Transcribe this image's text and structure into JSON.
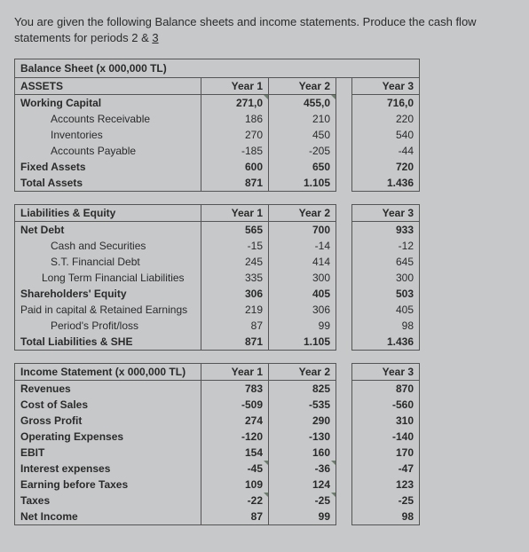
{
  "intro": {
    "part1": "You are given the following Balance sheets and income statements. Produce the cash flow statements for periods 2 & ",
    "part2": "3"
  },
  "balance_sheet": {
    "title": "Balance Sheet (x 000,000 TL)",
    "assets_header": "ASSETS",
    "years": [
      "Year 1",
      "Year 2",
      "Year 3"
    ],
    "rows": [
      {
        "label": "Working Capital",
        "bold": true,
        "indent": 0,
        "v": [
          "271,0",
          "455,0",
          "716,0"
        ],
        "mark": [
          true,
          true,
          false
        ]
      },
      {
        "label": "Accounts Receivable",
        "bold": false,
        "indent": 1,
        "v": [
          "186",
          "210",
          "220"
        ]
      },
      {
        "label": "Inventories",
        "bold": false,
        "indent": 1,
        "v": [
          "270",
          "450",
          "540"
        ]
      },
      {
        "label": "Accounts Payable",
        "bold": false,
        "indent": 1,
        "v": [
          "-185",
          "-205",
          "-44"
        ]
      },
      {
        "label": "Fixed Assets",
        "bold": true,
        "indent": 0,
        "v": [
          "600",
          "650",
          "720"
        ]
      },
      {
        "label": "Total Assets",
        "bold": true,
        "indent": 0,
        "v": [
          "871",
          "1.105",
          "1.436"
        ]
      }
    ],
    "liab_header": "Liabilities & Equity",
    "liab_rows": [
      {
        "label": "Net Debt",
        "bold": true,
        "indent": 0,
        "v": [
          "565",
          "700",
          "933"
        ]
      },
      {
        "label": "Cash and Securities",
        "bold": false,
        "indent": 1,
        "v": [
          "-15",
          "-14",
          "-12"
        ]
      },
      {
        "label": "S.T. Financial Debt",
        "bold": false,
        "indent": 1,
        "v": [
          "245",
          "414",
          "645"
        ]
      },
      {
        "label": "Long Term Financial Liabilities",
        "bold": false,
        "indent": 2,
        "v": [
          "335",
          "300",
          "300"
        ]
      },
      {
        "label": "Shareholders' Equity",
        "bold": true,
        "indent": 0,
        "v": [
          "306",
          "405",
          "503"
        ]
      },
      {
        "label": "Paid in capital & Retained Earnings",
        "bold": false,
        "indent": 0,
        "v": [
          "219",
          "306",
          "405"
        ]
      },
      {
        "label": "Period's Profit/loss",
        "bold": false,
        "indent": 1,
        "v": [
          "87",
          "99",
          "98"
        ]
      },
      {
        "label": "Total Liabilities & SHE",
        "bold": true,
        "indent": 0,
        "v": [
          "871",
          "1.105",
          "1.436"
        ]
      }
    ]
  },
  "income_statement": {
    "title": "Income Statement (x 000,000 TL)",
    "years": [
      "Year 1",
      "Year 2",
      "Year 3"
    ],
    "rows": [
      {
        "label": "Revenues",
        "bold": true,
        "v": [
          "783",
          "825",
          "870"
        ]
      },
      {
        "label": "Cost of Sales",
        "bold": true,
        "v": [
          "-509",
          "-535",
          "-560"
        ]
      },
      {
        "label": "Gross Profit",
        "bold": true,
        "v": [
          "274",
          "290",
          "310"
        ]
      },
      {
        "label": "Operating Expenses",
        "bold": true,
        "v": [
          "-120",
          "-130",
          "-140"
        ]
      },
      {
        "label": "EBIT",
        "bold": true,
        "v": [
          "154",
          "160",
          "170"
        ]
      },
      {
        "label": "Interest expenses",
        "bold": true,
        "v": [
          "-45",
          "-36",
          "-47"
        ],
        "mark": [
          true,
          true,
          false
        ]
      },
      {
        "label": "Earning before Taxes",
        "bold": true,
        "v": [
          "109",
          "124",
          "123"
        ]
      },
      {
        "label": "Taxes",
        "bold": true,
        "v": [
          "-22",
          "-25",
          "-25"
        ],
        "mark": [
          true,
          true,
          false
        ]
      },
      {
        "label": "Net Income",
        "bold": true,
        "v": [
          "87",
          "99",
          "98"
        ]
      }
    ]
  },
  "style": {
    "background": "#c6c8ca",
    "text_color": "#2a2a2a",
    "border_color": "#555555",
    "font_family": "Arial, sans-serif",
    "font_size_body": 12,
    "font_size_intro": 13
  }
}
